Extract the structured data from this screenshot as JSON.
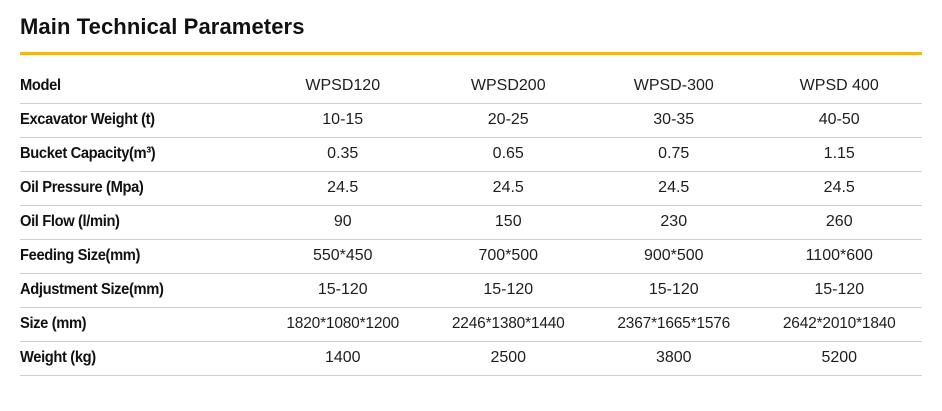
{
  "title": "Main Technical Parameters",
  "colors": {
    "accent_rule": "#f2b522",
    "text": "#1a1a1a",
    "row_divider": "#cfcfcf"
  },
  "table": {
    "header": {
      "label": "Model",
      "values": [
        "WPSD120",
        "WPSD200",
        "WPSD-300",
        "WPSD 400"
      ]
    },
    "rows": [
      {
        "label": "Excavator Weight (t)",
        "values": [
          "10-15",
          "20-25",
          "30-35",
          "40-50"
        ]
      },
      {
        "label": "Bucket Capacity(m³)",
        "values": [
          "0.35",
          "0.65",
          "0.75",
          "1.15"
        ]
      },
      {
        "label": "Oil Pressure (Mpa)",
        "values": [
          "24.5",
          "24.5",
          "24.5",
          "24.5"
        ]
      },
      {
        "label": "Oil Flow (l/min)",
        "values": [
          "90",
          "150",
          "230",
          "260"
        ]
      },
      {
        "label": "Feeding Size(mm)",
        "values": [
          "550*450",
          "700*500",
          "900*500",
          "1100*600"
        ]
      },
      {
        "label": "Adjustment Size(mm)",
        "values": [
          "15-120",
          "15-120",
          "15-120",
          "15-120"
        ]
      },
      {
        "label": "Size (mm)",
        "values": [
          "1820*1080*1200",
          "2246*1380*1440",
          "2367*1665*1576",
          "2642*2010*1840"
        ]
      },
      {
        "label": "Weight (kg)",
        "values": [
          "1400",
          "2500",
          "3800",
          "5200"
        ]
      }
    ]
  }
}
